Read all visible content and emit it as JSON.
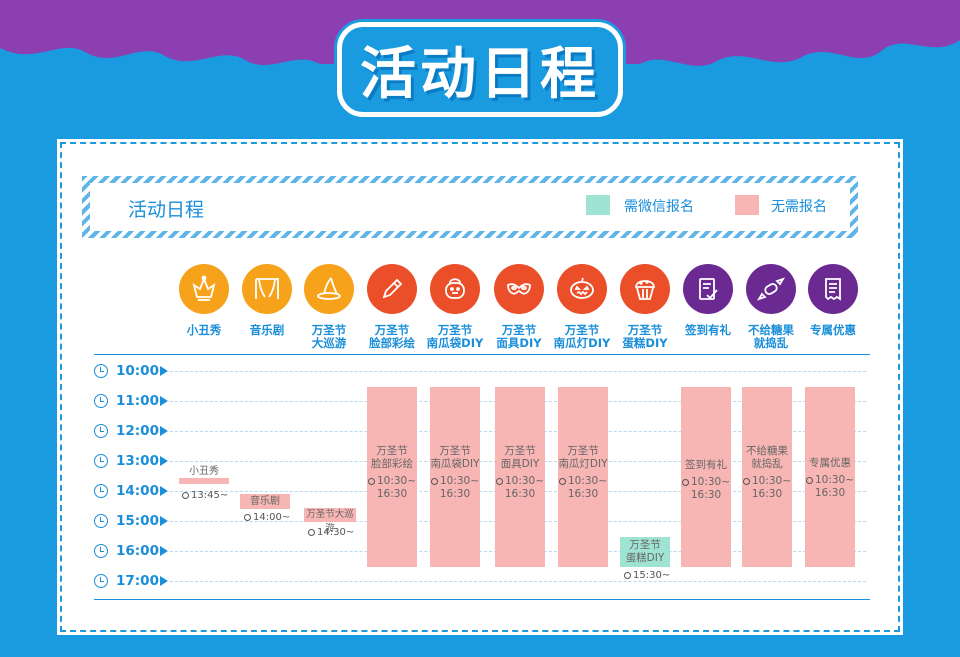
{
  "page_title": "活动日程",
  "colors": {
    "background": "#1a9be0",
    "purple": "#8b3fb0",
    "accent": "#1a8ed8",
    "wechat": "#9fe3d3",
    "no_signup": "#f7b5b3"
  },
  "schedule": {
    "title": "活动日程",
    "legend": [
      {
        "label": "需微信报名",
        "color": "#9fe3d3"
      },
      {
        "label": "无需报名",
        "color": "#f7b5b3"
      }
    ],
    "categories": [
      {
        "label": "小丑秀",
        "color": "#f7a21b",
        "icon": "jester-icon"
      },
      {
        "label": "音乐剧",
        "color": "#f7a21b",
        "icon": "theater-curtain-icon"
      },
      {
        "label": "万圣节\n大巡游",
        "color": "#f7a21b",
        "icon": "witch-hat-icon"
      },
      {
        "label": "万圣节\n脸部彩绘",
        "color": "#ea4f2a",
        "icon": "pencil-icon"
      },
      {
        "label": "万圣节\n南瓜袋DIY",
        "color": "#ea4f2a",
        "icon": "pumpkin-bag-icon"
      },
      {
        "label": "万圣节\n面具DIY",
        "color": "#ea4f2a",
        "icon": "mask-icon"
      },
      {
        "label": "万圣节\n南瓜灯DIY",
        "color": "#ea4f2a",
        "icon": "pumpkin-lantern-icon"
      },
      {
        "label": "万圣节\n蛋糕DIY",
        "color": "#ea4f2a",
        "icon": "cupcake-icon"
      },
      {
        "label": "签到有礼",
        "color": "#6b2a91",
        "icon": "checklist-icon"
      },
      {
        "label": "不给糖果\n就捣乱",
        "color": "#6b2a91",
        "icon": "candy-icon"
      },
      {
        "label": "专属优惠",
        "color": "#6b2a91",
        "icon": "receipt-icon"
      }
    ],
    "times": [
      "10:00",
      "11:00",
      "12:00",
      "13:00",
      "14:00",
      "15:00",
      "16:00",
      "17:00"
    ],
    "events": [
      {
        "title": "小丑秀",
        "time": "13:45~"
      },
      {
        "title": "音乐剧",
        "time": "14:00~"
      },
      {
        "title": "万圣节大巡游",
        "time": "14:30~"
      },
      {
        "title": "万圣节\n脸部彩绘",
        "time": "10:30~\n16:30"
      },
      {
        "title": "万圣节\n南瓜袋DIY",
        "time": "10:30~\n16:30"
      },
      {
        "title": "万圣节\n面具DIY",
        "time": "10:30~\n16:30"
      },
      {
        "title": "万圣节\n南瓜灯DIY",
        "time": "10:30~\n16:30"
      },
      {
        "title": "万圣节\n蛋糕DIY",
        "time": "15:30~"
      },
      {
        "title": "签到有礼",
        "time": "10:30~\n16:30"
      },
      {
        "title": "不给糖果\n就捣乱",
        "time": "10:30~\n16:30"
      },
      {
        "title": "专属优惠",
        "time": "10:30~\n16:30"
      }
    ]
  }
}
